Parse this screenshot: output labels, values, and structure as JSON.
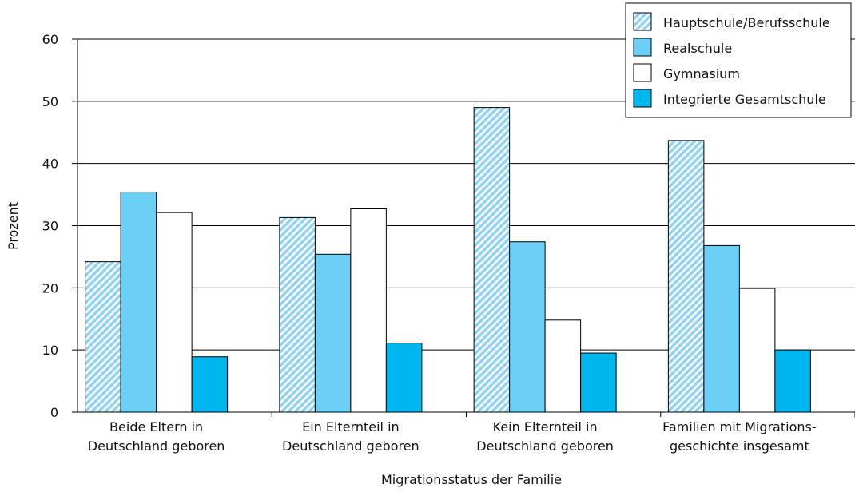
{
  "chart_data": {
    "type": "bar",
    "xlabel": "Migrationsstatus der Familie",
    "ylabel": "Prozent",
    "ylim": [
      0,
      60
    ],
    "yticks": [
      0,
      10,
      20,
      30,
      40,
      50,
      60
    ],
    "grid": true,
    "legend_position": "top-right",
    "categories": [
      [
        "Beide Eltern in",
        "Deutschland geboren"
      ],
      [
        "Ein Elternteil in",
        "Deutschland geboren"
      ],
      [
        "Kein Elternteil in",
        "Deutschland geboren"
      ],
      [
        "Familien mit Migrations-",
        "geschichte insgesamt"
      ]
    ],
    "series": [
      {
        "name": "Hauptschule/Berufsschule",
        "values": [
          24.2,
          31.3,
          49.0,
          43.7
        ],
        "color": "#8fd3f0",
        "pattern": "hatched"
      },
      {
        "name": "Realschule",
        "values": [
          35.4,
          25.4,
          27.4,
          26.8
        ],
        "color": "#6ccff6",
        "pattern": "solid"
      },
      {
        "name": "Gymnasium",
        "values": [
          32.1,
          32.7,
          14.8,
          19.9
        ],
        "color": "#ffffff",
        "pattern": "solid"
      },
      {
        "name": "Integrierte Gesamtschule",
        "values": [
          8.9,
          11.1,
          9.5,
          10.0
        ],
        "color": "#00b6ee",
        "pattern": "solid"
      }
    ]
  }
}
